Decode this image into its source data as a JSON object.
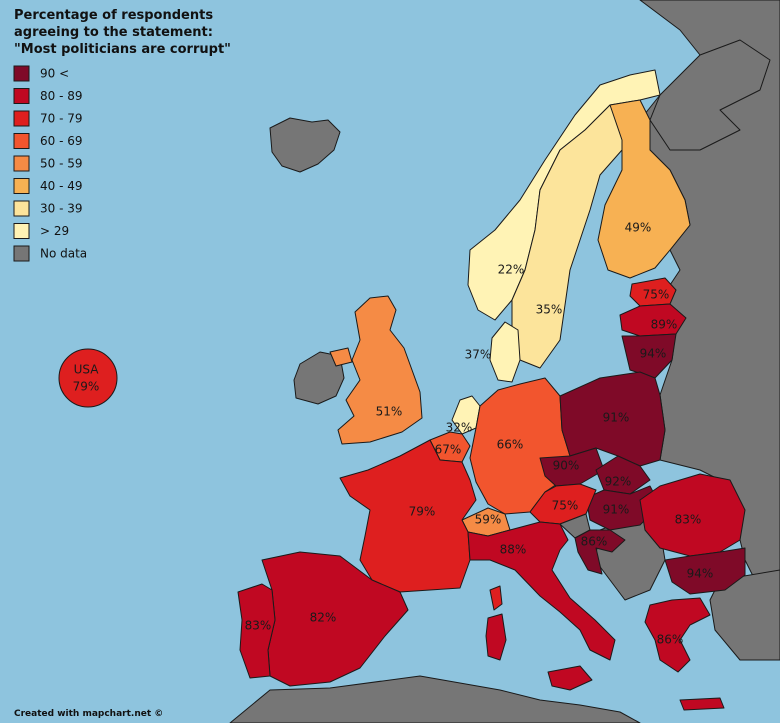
{
  "title": {
    "line1": "Percentage of respondents",
    "line2": "agreeing to the statement:",
    "line3": "\"Most politicians are corrupt\""
  },
  "colors": {
    "sea": "#8ec4de",
    "nodata": "#767676",
    "c90": "#7f0a28",
    "c80": "#c00822",
    "c70": "#de1f1f",
    "c60": "#f2552e",
    "c50": "#f58b45",
    "c40": "#f7b153",
    "c30": "#fce49b",
    "c29": "#fff3b5"
  },
  "legend": [
    {
      "label": "90 <",
      "color": "#7f0a28"
    },
    {
      "label": "80 - 89",
      "color": "#c00822"
    },
    {
      "label": "70 - 79",
      "color": "#de1f1f"
    },
    {
      "label": "60 - 69",
      "color": "#f2552e"
    },
    {
      "label": "50 - 59",
      "color": "#f58b45"
    },
    {
      "label": "40 - 49",
      "color": "#f7b153"
    },
    {
      "label": "30 - 39",
      "color": "#fce49b"
    },
    {
      "label": "> 29",
      "color": "#fff3b5"
    },
    {
      "label": "No data",
      "color": "#767676"
    }
  ],
  "usa": {
    "name": "USA",
    "value": "79%"
  },
  "values": {
    "norway": "22%",
    "sweden": "35%",
    "finland": "49%",
    "estonia": "75%",
    "latvia": "89%",
    "lithuania": "94%",
    "denmark": "37%",
    "uk": "51%",
    "netherlands": "32%",
    "belgium": "67%",
    "germany": "66%",
    "poland": "91%",
    "czechia": "90%",
    "slovakia": "92%",
    "hungary": "91%",
    "austria": "75%",
    "switzerland": "59%",
    "france": "79%",
    "italy": "88%",
    "croatia": "86%",
    "romania": "83%",
    "bulgaria": "94%",
    "spain": "82%",
    "portugal": "83%",
    "greece": "86%"
  },
  "credit": "Created with mapchart.net ©"
}
